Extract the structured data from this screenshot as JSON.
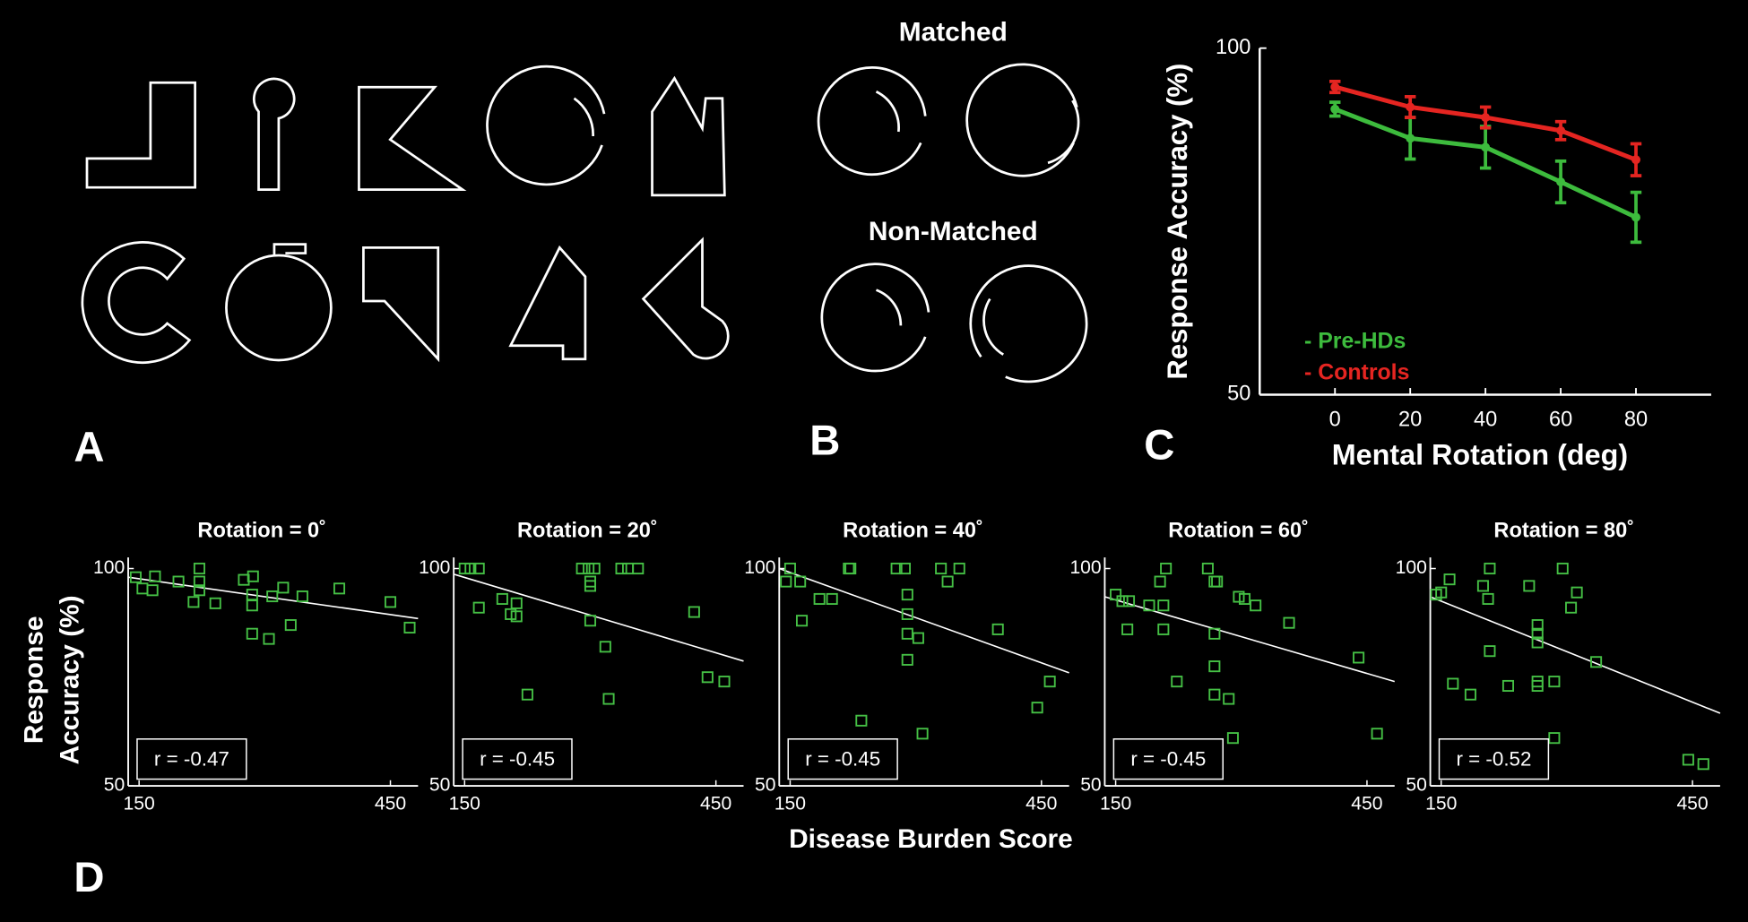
{
  "panel_labels": [
    "A",
    "B",
    "C",
    "D"
  ],
  "panel_b": {
    "matched": "Matched",
    "non_matched": "Non-Matched"
  },
  "panel_d": {
    "x_label": "Disease Burden Score",
    "y_label": [
      "Response",
      "Accuracy (%)"
    ]
  },
  "chart_data": [
    {
      "type": "line",
      "x_label": "Mental Rotation (deg)",
      "y_label": "Response Accuracy (%)",
      "x": [
        0,
        20,
        40,
        60,
        80
      ],
      "xlim": [
        -20,
        100
      ],
      "xticks": [
        0,
        20,
        40,
        60,
        80
      ],
      "ylim": [
        50,
        100
      ],
      "yticks": [
        50,
        100
      ],
      "legend": "lower left",
      "series": [
        {
          "name": "- Pre-HDs",
          "color": "#3dbb3d",
          "values": [
            91.2,
            87,
            85.7,
            80.7,
            75.6
          ],
          "errors": [
            1,
            3,
            3,
            3,
            3.6
          ]
        },
        {
          "name": "- Controls",
          "color": "#e52521",
          "values": [
            94.4,
            91.5,
            90,
            88.1,
            83.9
          ],
          "errors": [
            0.8,
            1.5,
            1.5,
            1.3,
            2.3
          ]
        }
      ]
    },
    {
      "type": "scatter",
      "title": "Rotation = 0˚",
      "r_label": "r = -0.47",
      "color": "#45c045",
      "xlim": [
        137,
        483
      ],
      "xticks": [
        150,
        450
      ],
      "ylim": [
        50,
        100
      ],
      "yticks": [
        50,
        100
      ],
      "x": [
        146,
        154,
        166,
        169,
        197,
        215,
        222,
        222,
        222,
        241,
        275,
        286,
        285,
        285,
        285,
        305,
        309,
        322,
        331,
        345,
        389,
        450,
        473
      ],
      "values": [
        98,
        95.4,
        95,
        98.2,
        97,
        92.3,
        100,
        97,
        95,
        92,
        97.4,
        98.2,
        94,
        91.5,
        85,
        83.8,
        93.6,
        95.6,
        87,
        93.6,
        95.4,
        92.3,
        86.4
      ],
      "fit": [
        98,
        88.5
      ]
    },
    {
      "type": "scatter",
      "title": "Rotation = 20˚",
      "r_label": "r = -0.45",
      "color": "#45c045",
      "xlim": [
        137,
        483
      ],
      "xticks": [
        150,
        450
      ],
      "ylim": [
        50,
        100
      ],
      "yticks": [
        50,
        100
      ],
      "x": [
        150,
        157,
        167,
        167,
        195,
        205,
        212,
        212,
        225,
        290,
        298,
        300,
        300,
        300,
        305,
        318,
        322,
        337,
        345,
        357,
        424,
        440,
        460
      ],
      "values": [
        100,
        100,
        100,
        91,
        93,
        89.5,
        89,
        92,
        71,
        100,
        100,
        97,
        96,
        88,
        100,
        82,
        70,
        100,
        100,
        100,
        90,
        75,
        74
      ],
      "fit": [
        98.7,
        78.7
      ]
    },
    {
      "type": "scatter",
      "title": "Rotation = 40˚",
      "r_label": "r = -0.45",
      "color": "#45c045",
      "xlim": [
        137,
        483
      ],
      "xticks": [
        150,
        450
      ],
      "ylim": [
        50,
        100
      ],
      "yticks": [
        50,
        100
      ],
      "x": [
        145,
        150,
        162,
        164,
        185,
        200,
        220,
        222,
        235,
        277,
        287,
        290,
        290,
        290,
        290,
        303,
        308,
        330,
        338,
        352,
        398,
        445,
        460
      ],
      "values": [
        97,
        100,
        97,
        88,
        93,
        93,
        100,
        100,
        65,
        100,
        100,
        94,
        89.5,
        85,
        79,
        84,
        62,
        100,
        97,
        100,
        86,
        68,
        74
      ],
      "fit": [
        100,
        76
      ]
    },
    {
      "type": "scatter",
      "title": "Rotation = 60˚",
      "r_label": "r = -0.45",
      "color": "#45c045",
      "xlim": [
        137,
        483
      ],
      "xticks": [
        150,
        450
      ],
      "ylim": [
        50,
        100
      ],
      "yticks": [
        50,
        100
      ],
      "x": [
        150,
        158,
        166,
        164,
        190,
        203,
        207,
        210,
        207,
        223,
        260,
        268,
        271,
        268,
        268,
        268,
        285,
        290,
        297,
        304,
        317,
        357,
        440,
        462
      ],
      "values": [
        94,
        92.5,
        92.5,
        86,
        91.5,
        97,
        91.5,
        100,
        86,
        74,
        100,
        97,
        97,
        85,
        77.5,
        71,
        70,
        61,
        93.5,
        93,
        91.5,
        87.5,
        79.5,
        62
      ],
      "fit": [
        93.5,
        74
      ]
    },
    {
      "type": "scatter",
      "title": "Rotation = 80˚",
      "r_label": "r = -0.52",
      "color": "#45c045",
      "xlim": [
        137,
        483
      ],
      "xticks": [
        150,
        450
      ],
      "ylim": [
        50,
        100
      ],
      "yticks": [
        50,
        100
      ],
      "x": [
        144,
        150,
        160,
        164,
        185,
        200,
        206,
        208,
        208,
        230,
        255,
        265,
        265,
        265,
        265,
        265,
        285,
        285,
        295,
        305,
        312,
        335,
        445,
        463
      ],
      "values": [
        94,
        94.5,
        97.5,
        73.5,
        71,
        96,
        93,
        81,
        100,
        73,
        96,
        83,
        85,
        87,
        73,
        74,
        74,
        61,
        100,
        91,
        94.5,
        78.5,
        56,
        55
      ],
      "fit": [
        93.5,
        66.7
      ]
    }
  ]
}
